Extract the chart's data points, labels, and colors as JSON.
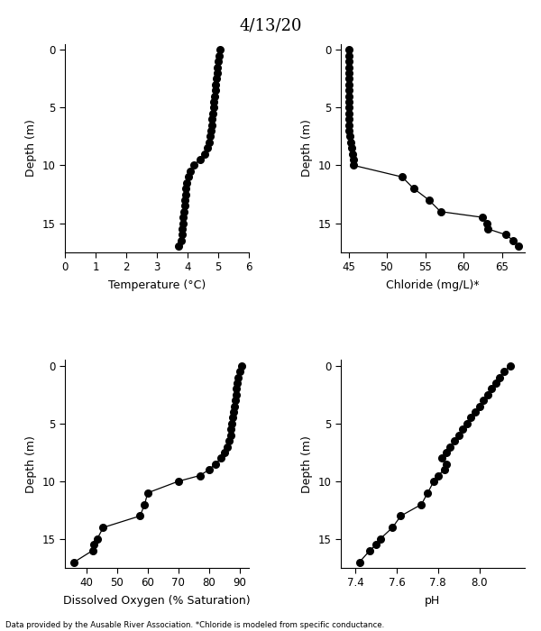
{
  "title": "4/13/20",
  "footnote": "Data provided by the Ausable River Association. *Chloride is modeled from specific conductance.",
  "temp_depth": [
    0,
    0.5,
    1,
    1.5,
    2,
    2.5,
    3,
    3.5,
    4,
    4.5,
    5,
    5.5,
    6,
    6.5,
    7,
    7.5,
    8,
    8.5,
    9,
    9.5,
    10,
    10.5,
    11,
    11.5,
    12,
    12.5,
    13,
    13.5,
    14,
    14.5,
    15,
    15.5,
    16,
    16.5,
    17
  ],
  "temp_vals": [
    5.05,
    5.02,
    5.0,
    4.98,
    4.96,
    4.94,
    4.92,
    4.9,
    4.88,
    4.86,
    4.84,
    4.82,
    4.8,
    4.78,
    4.76,
    4.74,
    4.7,
    4.65,
    4.55,
    4.4,
    4.2,
    4.1,
    4.02,
    3.98,
    3.95,
    3.93,
    3.91,
    3.9,
    3.88,
    3.86,
    3.84,
    3.82,
    3.81,
    3.79,
    3.72
  ],
  "chloride_depth": [
    0,
    0.5,
    1,
    1.5,
    2,
    2.5,
    3,
    3.5,
    4,
    4.5,
    5,
    5.5,
    6,
    6.5,
    7,
    7.5,
    8,
    8.5,
    9,
    9.5,
    10,
    11,
    12,
    13,
    14,
    14.5,
    15,
    15.5,
    16,
    16.5,
    17
  ],
  "chloride_vals": [
    45.0,
    45.0,
    45.0,
    45.0,
    45.0,
    45.0,
    45.0,
    45.0,
    45.0,
    45.0,
    45.0,
    45.0,
    45.0,
    45.0,
    45.1,
    45.2,
    45.3,
    45.4,
    45.5,
    45.6,
    45.7,
    52.0,
    53.5,
    55.5,
    57.0,
    62.5,
    63.0,
    63.2,
    65.5,
    66.5,
    67.2
  ],
  "do_depth": [
    0,
    0.5,
    1,
    1.5,
    2,
    2.5,
    3,
    3.5,
    4,
    4.5,
    5,
    5.5,
    6,
    6.5,
    7,
    7.5,
    8,
    8.5,
    9,
    9.5,
    10,
    11,
    12,
    13,
    14,
    15,
    15.5,
    16,
    17
  ],
  "do_vals": [
    90.5,
    90.0,
    89.5,
    89.2,
    89.0,
    88.8,
    88.5,
    88.2,
    88.0,
    87.7,
    87.5,
    87.2,
    87.0,
    86.5,
    86.0,
    85.0,
    84.0,
    82.0,
    80.0,
    77.0,
    70.0,
    60.0,
    59.0,
    57.5,
    45.5,
    43.5,
    42.5,
    42.0,
    36.0
  ],
  "ph_depth": [
    0,
    0.5,
    1,
    1.5,
    2,
    2.5,
    3,
    3.5,
    4,
    4.5,
    5,
    5.5,
    6,
    6.5,
    7,
    7.5,
    8,
    8.5,
    9,
    9.5,
    10,
    11,
    12,
    13,
    14,
    15,
    15.5,
    16,
    17
  ],
  "ph_vals": [
    8.15,
    8.12,
    8.1,
    8.08,
    8.06,
    8.04,
    8.02,
    8.0,
    7.98,
    7.96,
    7.94,
    7.92,
    7.9,
    7.88,
    7.86,
    7.84,
    7.82,
    7.84,
    7.83,
    7.8,
    7.78,
    7.75,
    7.72,
    7.62,
    7.58,
    7.52,
    7.5,
    7.47,
    7.42
  ],
  "temp_xlim": [
    0,
    6
  ],
  "temp_xticks": [
    0,
    1,
    2,
    3,
    4,
    5,
    6
  ],
  "chloride_xlim": [
    44,
    68
  ],
  "chloride_xticks": [
    45,
    50,
    55,
    60,
    65
  ],
  "do_xlim": [
    33,
    93
  ],
  "do_xticks": [
    40,
    50,
    60,
    70,
    80,
    90
  ],
  "ph_xlim": [
    7.33,
    8.22
  ],
  "ph_xticks": [
    7.4,
    7.6,
    7.8,
    8.0
  ],
  "depth_ylim": [
    17.5,
    -0.5
  ],
  "depth_yticks": [
    0,
    5,
    10,
    15
  ],
  "xlabel_temp": "Temperature (°C)",
  "xlabel_chloride": "Chloride (mg/L)*",
  "xlabel_do": "Dissolved Oxygen (% Saturation)",
  "xlabel_ph": "pH",
  "ylabel": "Depth (m)",
  "line_color": "black",
  "marker": "o",
  "markersize": 5.5,
  "linewidth": 0.9,
  "title_fontsize": 13,
  "label_fontsize": 9,
  "tick_fontsize": 8.5
}
